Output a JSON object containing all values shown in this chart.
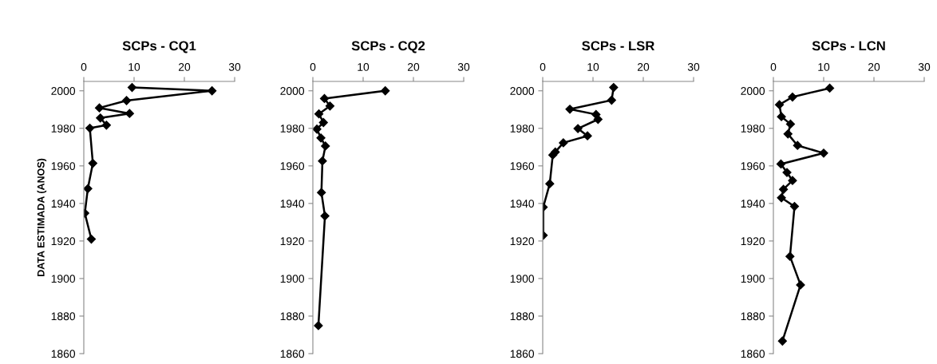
{
  "chart_data": [
    {
      "type": "line",
      "orientation": "horizontal",
      "title": "SCPs - CQ1",
      "ylabel": "DATA ESTIMADA (ANOS)",
      "marker": "diamond",
      "line_style": "solid",
      "grid": false,
      "xlim": [
        0,
        30
      ],
      "xticks": [
        0,
        10,
        20,
        30
      ],
      "ylim": [
        1860,
        2005
      ],
      "yticks": [
        1860,
        1880,
        1900,
        1920,
        1940,
        1960,
        1980,
        2000
      ],
      "series": [
        {
          "color": "#000000",
          "x": [
            2001.8,
            2000,
            1994.8,
            1990.9,
            1987.9,
            1985.5,
            1981.7,
            1980.1,
            1961.4,
            1947.9,
            1934.8,
            1921.0
          ],
          "values": [
            9.6,
            25.5,
            8.5,
            3.1,
            9.1,
            3.3,
            4.5,
            1.2,
            1.8,
            0.8,
            0.2,
            1.5
          ]
        }
      ]
    },
    {
      "type": "line",
      "orientation": "horizontal",
      "title": "SCPs - CQ2",
      "marker": "diamond",
      "line_style": "solid",
      "grid": false,
      "xlim": [
        0,
        30
      ],
      "xticks": [
        0,
        10,
        20,
        30
      ],
      "ylim": [
        1860,
        2005
      ],
      "yticks": [
        1860,
        1880,
        1900,
        1920,
        1940,
        1960,
        1980,
        2000
      ],
      "series": [
        {
          "color": "#000000",
          "x": [
            2000,
            1995.9,
            1991.9,
            1987.7,
            1983.1,
            1979.6,
            1974.9,
            1970.6,
            1962.6,
            1945.8,
            1933.3,
            1874.9
          ],
          "values": [
            14.4,
            2.3,
            3.4,
            1.2,
            2.1,
            0.8,
            1.6,
            2.5,
            1.9,
            1.7,
            2.4,
            1.1
          ]
        }
      ]
    },
    {
      "type": "line",
      "orientation": "horizontal",
      "title": "SCPs - LSR",
      "marker": "diamond",
      "line_style": "solid",
      "grid": false,
      "xlim": [
        0,
        30
      ],
      "xticks": [
        0,
        10,
        20,
        30
      ],
      "ylim": [
        1860,
        2005
      ],
      "yticks": [
        1860,
        1880,
        1900,
        1920,
        1940,
        1960,
        1980,
        2000
      ],
      "series": [
        {
          "color": "#000000",
          "x": [
            2001.8,
            1995.0,
            1990.2,
            1987.4,
            1984.8,
            1979.9,
            1976.0,
            1972.3,
            1967.4,
            1965.8,
            1950.5,
            1938.0,
            1923.0
          ],
          "values": [
            14.1,
            13.7,
            5.4,
            10.6,
            11.0,
            7.0,
            8.9,
            4.1,
            2.5,
            2.0,
            1.4,
            0.1,
            0.1
          ]
        }
      ]
    },
    {
      "type": "line",
      "orientation": "horizontal",
      "title": "SCPs - LCN",
      "marker": "diamond",
      "line_style": "solid",
      "grid": false,
      "xlim": [
        0,
        30
      ],
      "xticks": [
        0,
        10,
        20,
        30
      ],
      "ylim": [
        1860,
        2005
      ],
      "yticks": [
        1860,
        1880,
        1900,
        1920,
        1940,
        1960,
        1980,
        2000
      ],
      "series": [
        {
          "color": "#000000",
          "x": [
            2001.4,
            1996.7,
            1992.6,
            1986.2,
            1982.3,
            1977.0,
            1970.9,
            1966.8,
            1961.0,
            1956.5,
            1952.2,
            1947.5,
            1943.0,
            1938.4,
            1911.8,
            1896.6,
            1866.7
          ],
          "values": [
            11.2,
            3.8,
            1.2,
            1.6,
            3.4,
            2.9,
            4.8,
            10.0,
            1.5,
            2.7,
            3.8,
            2.0,
            1.6,
            4.2,
            3.3,
            5.4,
            1.8
          ]
        }
      ]
    }
  ]
}
